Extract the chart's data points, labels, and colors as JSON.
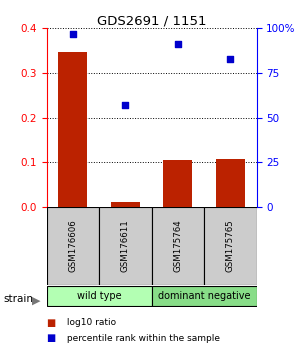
{
  "title": "GDS2691 / 1151",
  "samples": [
    "GSM176606",
    "GSM176611",
    "GSM175764",
    "GSM175765"
  ],
  "log10_ratio": [
    0.347,
    0.012,
    0.105,
    0.107
  ],
  "percentile_rank_pct": [
    97,
    57,
    91,
    83
  ],
  "bar_color": "#bb2200",
  "dot_color": "#0000cc",
  "ylim_left": [
    0,
    0.4
  ],
  "ylim_right": [
    0,
    100
  ],
  "yticks_left": [
    0,
    0.1,
    0.2,
    0.3,
    0.4
  ],
  "yticks_right": [
    0,
    25,
    50,
    75,
    100
  ],
  "ytick_labels_right": [
    "0",
    "25",
    "50",
    "75",
    "100%"
  ],
  "groups": [
    {
      "label": "wild type",
      "sample_indices": [
        0,
        1
      ],
      "color": "#b3ffb3"
    },
    {
      "label": "dominant negative",
      "sample_indices": [
        2,
        3
      ],
      "color": "#88dd88"
    }
  ],
  "strain_label": "strain",
  "legend_items": [
    {
      "color": "#bb2200",
      "label": " log10 ratio"
    },
    {
      "color": "#0000cc",
      "label": " percentile rank within the sample"
    }
  ],
  "sample_box_color": "#cccccc",
  "background_color": "#ffffff",
  "bar_width": 0.55
}
